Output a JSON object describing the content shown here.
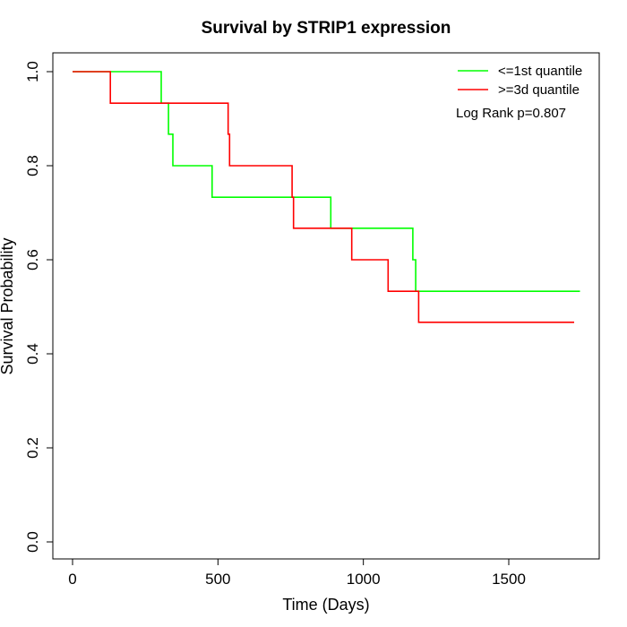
{
  "chart_data": {
    "type": "line",
    "title": "Survival by STRIP1 expression",
    "xlabel": "Time (Days)",
    "ylabel": "Survival Probability",
    "xlim": [
      0,
      1800
    ],
    "ylim": [
      0,
      1
    ],
    "x_ticks": [
      0,
      500,
      1000,
      1500
    ],
    "y_ticks": [
      0.0,
      0.2,
      0.4,
      0.6,
      0.8,
      1.0
    ],
    "x_tick_labels": [
      "0",
      "500",
      "1000",
      "1500"
    ],
    "y_tick_labels": [
      "0.0",
      "0.2",
      "0.4",
      "0.6",
      "0.8",
      "1.0"
    ],
    "legend_position": "top-right",
    "annotation": "Log Rank p=0.807",
    "grid": false,
    "series": [
      {
        "name": "<=1st quantile",
        "color": "#00ff00",
        "step": true,
        "points": [
          [
            0,
            1.0
          ],
          [
            305,
            1.0
          ],
          [
            305,
            0.933
          ],
          [
            330,
            0.933
          ],
          [
            330,
            0.867
          ],
          [
            345,
            0.867
          ],
          [
            345,
            0.8
          ],
          [
            480,
            0.8
          ],
          [
            480,
            0.733
          ],
          [
            888,
            0.733
          ],
          [
            888,
            0.667
          ],
          [
            1170,
            0.667
          ],
          [
            1170,
            0.6
          ],
          [
            1180,
            0.6
          ],
          [
            1180,
            0.533
          ],
          [
            1745,
            0.533
          ]
        ]
      },
      {
        "name": ">=3d quantile",
        "color": "#ff0000",
        "step": true,
        "points": [
          [
            0,
            1.0
          ],
          [
            130,
            1.0
          ],
          [
            130,
            0.933
          ],
          [
            535,
            0.933
          ],
          [
            535,
            0.867
          ],
          [
            540,
            0.867
          ],
          [
            540,
            0.8
          ],
          [
            755,
            0.8
          ],
          [
            755,
            0.733
          ],
          [
            760,
            0.733
          ],
          [
            760,
            0.667
          ],
          [
            960,
            0.667
          ],
          [
            960,
            0.6
          ],
          [
            1085,
            0.6
          ],
          [
            1085,
            0.533
          ],
          [
            1190,
            0.533
          ],
          [
            1190,
            0.467
          ],
          [
            1725,
            0.467
          ]
        ]
      }
    ]
  }
}
